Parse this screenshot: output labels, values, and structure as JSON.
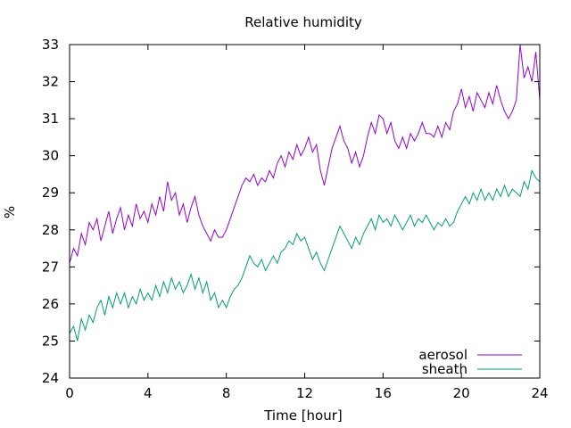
{
  "chart_data": {
    "type": "line",
    "title": "Relative humidity",
    "xlabel": "Time [hour]",
    "ylabel": "%",
    "xlim": [
      0,
      24
    ],
    "ylim": [
      24,
      33
    ],
    "xticks": [
      0,
      4,
      8,
      12,
      16,
      20,
      24
    ],
    "yticks": [
      24,
      25,
      26,
      27,
      28,
      29,
      30,
      31,
      32,
      33
    ],
    "grid": false,
    "legend": "bottom-right",
    "series": [
      {
        "name": "aerosol",
        "color": "#9400d3",
        "points": [
          [
            0,
            27.1
          ],
          [
            0.2,
            27.5
          ],
          [
            0.4,
            27.3
          ],
          [
            0.6,
            27.9
          ],
          [
            0.8,
            27.6
          ],
          [
            1.0,
            28.2
          ],
          [
            1.2,
            28.0
          ],
          [
            1.4,
            28.3
          ],
          [
            1.6,
            27.7
          ],
          [
            1.8,
            28.1
          ],
          [
            2.0,
            28.5
          ],
          [
            2.2,
            27.9
          ],
          [
            2.4,
            28.3
          ],
          [
            2.6,
            28.6
          ],
          [
            2.8,
            28.0
          ],
          [
            3.0,
            28.4
          ],
          [
            3.2,
            28.1
          ],
          [
            3.4,
            28.7
          ],
          [
            3.6,
            28.3
          ],
          [
            3.8,
            28.5
          ],
          [
            4.0,
            28.2
          ],
          [
            4.2,
            28.7
          ],
          [
            4.4,
            28.4
          ],
          [
            4.6,
            28.9
          ],
          [
            4.8,
            28.5
          ],
          [
            5.0,
            29.3
          ],
          [
            5.2,
            28.8
          ],
          [
            5.4,
            29.0
          ],
          [
            5.6,
            28.4
          ],
          [
            5.8,
            28.7
          ],
          [
            6.0,
            28.2
          ],
          [
            6.2,
            28.6
          ],
          [
            6.4,
            28.9
          ],
          [
            6.6,
            28.4
          ],
          [
            6.8,
            28.1
          ],
          [
            7.0,
            27.9
          ],
          [
            7.2,
            27.7
          ],
          [
            7.4,
            28.0
          ],
          [
            7.6,
            27.8
          ],
          [
            7.8,
            27.8
          ],
          [
            8.0,
            28.0
          ],
          [
            8.2,
            28.3
          ],
          [
            8.4,
            28.6
          ],
          [
            8.6,
            28.9
          ],
          [
            8.8,
            29.2
          ],
          [
            9.0,
            29.4
          ],
          [
            9.2,
            29.3
          ],
          [
            9.4,
            29.5
          ],
          [
            9.6,
            29.2
          ],
          [
            9.8,
            29.4
          ],
          [
            10.0,
            29.3
          ],
          [
            10.2,
            29.6
          ],
          [
            10.4,
            29.4
          ],
          [
            10.6,
            29.8
          ],
          [
            10.8,
            30.0
          ],
          [
            11.0,
            29.7
          ],
          [
            11.2,
            30.1
          ],
          [
            11.4,
            29.9
          ],
          [
            11.6,
            30.3
          ],
          [
            11.8,
            30.0
          ],
          [
            12.0,
            30.2
          ],
          [
            12.2,
            30.5
          ],
          [
            12.4,
            30.1
          ],
          [
            12.6,
            30.3
          ],
          [
            12.8,
            29.6
          ],
          [
            13.0,
            29.2
          ],
          [
            13.2,
            29.7
          ],
          [
            13.4,
            30.2
          ],
          [
            13.6,
            30.5
          ],
          [
            13.8,
            30.8
          ],
          [
            14.0,
            30.4
          ],
          [
            14.2,
            30.2
          ],
          [
            14.4,
            29.8
          ],
          [
            14.6,
            30.1
          ],
          [
            14.8,
            29.7
          ],
          [
            15.0,
            30.0
          ],
          [
            15.2,
            30.5
          ],
          [
            15.4,
            30.9
          ],
          [
            15.6,
            30.6
          ],
          [
            15.8,
            31.1
          ],
          [
            16.0,
            31.0
          ],
          [
            16.2,
            30.6
          ],
          [
            16.4,
            30.9
          ],
          [
            16.6,
            30.4
          ],
          [
            16.8,
            30.2
          ],
          [
            17.0,
            30.5
          ],
          [
            17.2,
            30.2
          ],
          [
            17.4,
            30.6
          ],
          [
            17.6,
            30.4
          ],
          [
            17.8,
            30.6
          ],
          [
            18.0,
            30.9
          ],
          [
            18.2,
            30.6
          ],
          [
            18.4,
            30.6
          ],
          [
            18.6,
            30.5
          ],
          [
            18.8,
            30.8
          ],
          [
            19.0,
            30.5
          ],
          [
            19.2,
            30.9
          ],
          [
            19.4,
            30.7
          ],
          [
            19.6,
            31.2
          ],
          [
            19.8,
            31.4
          ],
          [
            20.0,
            31.8
          ],
          [
            20.2,
            31.3
          ],
          [
            20.4,
            31.6
          ],
          [
            20.6,
            31.2
          ],
          [
            20.8,
            31.7
          ],
          [
            21.0,
            31.5
          ],
          [
            21.2,
            31.3
          ],
          [
            21.4,
            31.7
          ],
          [
            21.6,
            31.4
          ],
          [
            21.8,
            31.9
          ],
          [
            22.0,
            31.5
          ],
          [
            22.2,
            31.2
          ],
          [
            22.4,
            31.0
          ],
          [
            22.6,
            31.2
          ],
          [
            22.8,
            31.5
          ],
          [
            23.0,
            33.0
          ],
          [
            23.2,
            32.1
          ],
          [
            23.4,
            32.4
          ],
          [
            23.6,
            32.0
          ],
          [
            23.8,
            32.8
          ],
          [
            24.0,
            31.5
          ]
        ]
      },
      {
        "name": "sheath",
        "color": "#009e73",
        "points": [
          [
            0,
            25.2
          ],
          [
            0.2,
            25.4
          ],
          [
            0.4,
            25.0
          ],
          [
            0.6,
            25.6
          ],
          [
            0.8,
            25.3
          ],
          [
            1.0,
            25.7
          ],
          [
            1.2,
            25.5
          ],
          [
            1.4,
            25.9
          ],
          [
            1.6,
            26.1
          ],
          [
            1.8,
            25.7
          ],
          [
            2.0,
            26.2
          ],
          [
            2.2,
            25.9
          ],
          [
            2.4,
            26.3
          ],
          [
            2.6,
            26.0
          ],
          [
            2.8,
            26.3
          ],
          [
            3.0,
            25.9
          ],
          [
            3.2,
            26.2
          ],
          [
            3.4,
            26.0
          ],
          [
            3.6,
            26.4
          ],
          [
            3.8,
            26.1
          ],
          [
            4.0,
            26.3
          ],
          [
            4.2,
            26.1
          ],
          [
            4.4,
            26.5
          ],
          [
            4.6,
            26.2
          ],
          [
            4.8,
            26.6
          ],
          [
            5.0,
            26.3
          ],
          [
            5.2,
            26.7
          ],
          [
            5.4,
            26.4
          ],
          [
            5.6,
            26.6
          ],
          [
            5.8,
            26.3
          ],
          [
            6.0,
            26.5
          ],
          [
            6.2,
            26.8
          ],
          [
            6.4,
            26.4
          ],
          [
            6.6,
            26.7
          ],
          [
            6.8,
            26.3
          ],
          [
            7.0,
            26.6
          ],
          [
            7.2,
            26.1
          ],
          [
            7.4,
            26.3
          ],
          [
            7.6,
            25.9
          ],
          [
            7.8,
            26.1
          ],
          [
            8.0,
            25.9
          ],
          [
            8.2,
            26.2
          ],
          [
            8.4,
            26.4
          ],
          [
            8.6,
            26.5
          ],
          [
            8.8,
            26.7
          ],
          [
            9.0,
            27.0
          ],
          [
            9.2,
            27.3
          ],
          [
            9.4,
            27.1
          ],
          [
            9.6,
            27.0
          ],
          [
            9.8,
            27.2
          ],
          [
            10.0,
            26.9
          ],
          [
            10.2,
            27.1
          ],
          [
            10.4,
            27.3
          ],
          [
            10.6,
            27.1
          ],
          [
            10.8,
            27.4
          ],
          [
            11.0,
            27.5
          ],
          [
            11.2,
            27.7
          ],
          [
            11.4,
            27.6
          ],
          [
            11.6,
            27.9
          ],
          [
            11.8,
            27.7
          ],
          [
            12.0,
            27.8
          ],
          [
            12.2,
            27.5
          ],
          [
            12.4,
            27.2
          ],
          [
            12.6,
            27.4
          ],
          [
            12.8,
            27.1
          ],
          [
            13.0,
            26.9
          ],
          [
            13.2,
            27.2
          ],
          [
            13.4,
            27.5
          ],
          [
            13.6,
            27.8
          ],
          [
            13.8,
            28.1
          ],
          [
            14.0,
            27.9
          ],
          [
            14.2,
            27.7
          ],
          [
            14.4,
            27.5
          ],
          [
            14.6,
            27.8
          ],
          [
            14.8,
            27.6
          ],
          [
            15.0,
            27.9
          ],
          [
            15.2,
            28.1
          ],
          [
            15.4,
            28.3
          ],
          [
            15.6,
            28.0
          ],
          [
            15.8,
            28.4
          ],
          [
            16.0,
            28.2
          ],
          [
            16.2,
            28.3
          ],
          [
            16.4,
            28.1
          ],
          [
            16.6,
            28.4
          ],
          [
            16.8,
            28.2
          ],
          [
            17.0,
            28.0
          ],
          [
            17.2,
            28.2
          ],
          [
            17.4,
            28.4
          ],
          [
            17.6,
            28.1
          ],
          [
            17.8,
            28.3
          ],
          [
            18.0,
            28.2
          ],
          [
            18.2,
            28.4
          ],
          [
            18.4,
            28.2
          ],
          [
            18.6,
            28.0
          ],
          [
            18.8,
            28.2
          ],
          [
            19.0,
            28.1
          ],
          [
            19.2,
            28.3
          ],
          [
            19.4,
            28.1
          ],
          [
            19.6,
            28.2
          ],
          [
            19.8,
            28.5
          ],
          [
            20.0,
            28.7
          ],
          [
            20.2,
            28.9
          ],
          [
            20.4,
            28.7
          ],
          [
            20.6,
            29.0
          ],
          [
            20.8,
            28.8
          ],
          [
            21.0,
            29.1
          ],
          [
            21.2,
            28.8
          ],
          [
            21.4,
            29.0
          ],
          [
            21.6,
            28.8
          ],
          [
            21.8,
            29.1
          ],
          [
            22.0,
            28.9
          ],
          [
            22.2,
            29.2
          ],
          [
            22.4,
            28.9
          ],
          [
            22.6,
            29.1
          ],
          [
            22.8,
            29.0
          ],
          [
            23.0,
            28.9
          ],
          [
            23.2,
            29.3
          ],
          [
            23.4,
            29.1
          ],
          [
            23.6,
            29.6
          ],
          [
            23.8,
            29.4
          ],
          [
            24.0,
            29.3
          ]
        ]
      }
    ]
  }
}
